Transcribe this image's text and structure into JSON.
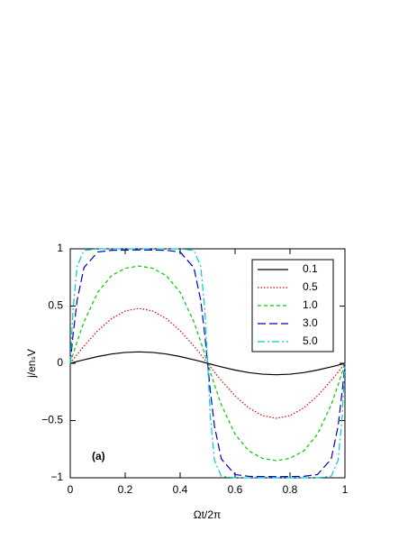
{
  "chart_data": {
    "type": "line",
    "x_label": "Ωt/2π",
    "y_label": "j/enₛV",
    "annotation": "(a)",
    "xlim": [
      0,
      1
    ],
    "ylim": [
      -1,
      1
    ],
    "xticks": [
      0,
      0.2,
      0.4,
      0.6,
      0.8,
      1
    ],
    "yticks": [
      {
        "value": -1,
        "label": "−1"
      },
      {
        "value": -0.5,
        "label": "−0.5"
      },
      0,
      0.5,
      1
    ],
    "legend": "upper right",
    "x": [
      0,
      0.01,
      0.025,
      0.05,
      0.1,
      0.15,
      0.2,
      0.25,
      0.3,
      0.35,
      0.4,
      0.45,
      0.475,
      0.49,
      0.5,
      0.51,
      0.525,
      0.55,
      0.6,
      0.65,
      0.7,
      0.75,
      0.8,
      0.85,
      0.9,
      0.95,
      0.975,
      0.99,
      1
    ],
    "series": [
      {
        "name": "0.1",
        "color": "#000000",
        "dash": "solid",
        "values": [
          0,
          0.006,
          0.016,
          0.031,
          0.059,
          0.081,
          0.095,
          0.1,
          0.095,
          0.081,
          0.059,
          0.031,
          0.016,
          0.006,
          0,
          -0.006,
          -0.016,
          -0.031,
          -0.059,
          -0.081,
          -0.095,
          -0.1,
          -0.095,
          -0.081,
          -0.059,
          -0.031,
          -0.016,
          -0.006,
          0
        ]
      },
      {
        "name": "0.5",
        "color": "#e00000",
        "dash": "dotted",
        "values": [
          0,
          0.031,
          0.077,
          0.15,
          0.285,
          0.39,
          0.457,
          0.48,
          0.457,
          0.39,
          0.285,
          0.15,
          0.077,
          0.031,
          0,
          -0.031,
          -0.077,
          -0.15,
          -0.285,
          -0.39,
          -0.457,
          -0.48,
          -0.457,
          -0.39,
          -0.285,
          -0.15,
          -0.077,
          -0.031,
          0
        ]
      },
      {
        "name": "1.0",
        "color": "#00cc00",
        "dash": "dashed",
        "values": [
          0,
          0.077,
          0.189,
          0.362,
          0.62,
          0.765,
          0.83,
          0.85,
          0.83,
          0.765,
          0.62,
          0.362,
          0.189,
          0.077,
          0,
          -0.077,
          -0.189,
          -0.362,
          -0.62,
          -0.765,
          -0.83,
          -0.85,
          -0.83,
          -0.765,
          -0.62,
          -0.362,
          -0.189,
          -0.077,
          0
        ]
      },
      {
        "name": "3.0",
        "color": "#0000cc",
        "dash": "longdash",
        "values": [
          0,
          0.244,
          0.549,
          0.836,
          0.972,
          0.987,
          0.989,
          0.99,
          0.989,
          0.987,
          0.972,
          0.836,
          0.549,
          0.244,
          0,
          -0.244,
          -0.549,
          -0.836,
          -0.972,
          -0.987,
          -0.989,
          -0.99,
          -0.989,
          -0.987,
          -0.972,
          -0.836,
          -0.549,
          -0.244,
          0
        ]
      },
      {
        "name": "5.0",
        "color": "#00cccc",
        "dash": "dashdot",
        "values": [
          0,
          0.464,
          0.848,
          0.986,
          1,
          1,
          1,
          1,
          1,
          1,
          1,
          0.986,
          0.848,
          0.464,
          0,
          -0.464,
          -0.848,
          -0.986,
          -1,
          -1,
          -1,
          -1,
          -1,
          -1,
          -1,
          -0.986,
          -0.848,
          -0.464,
          0
        ]
      }
    ]
  }
}
